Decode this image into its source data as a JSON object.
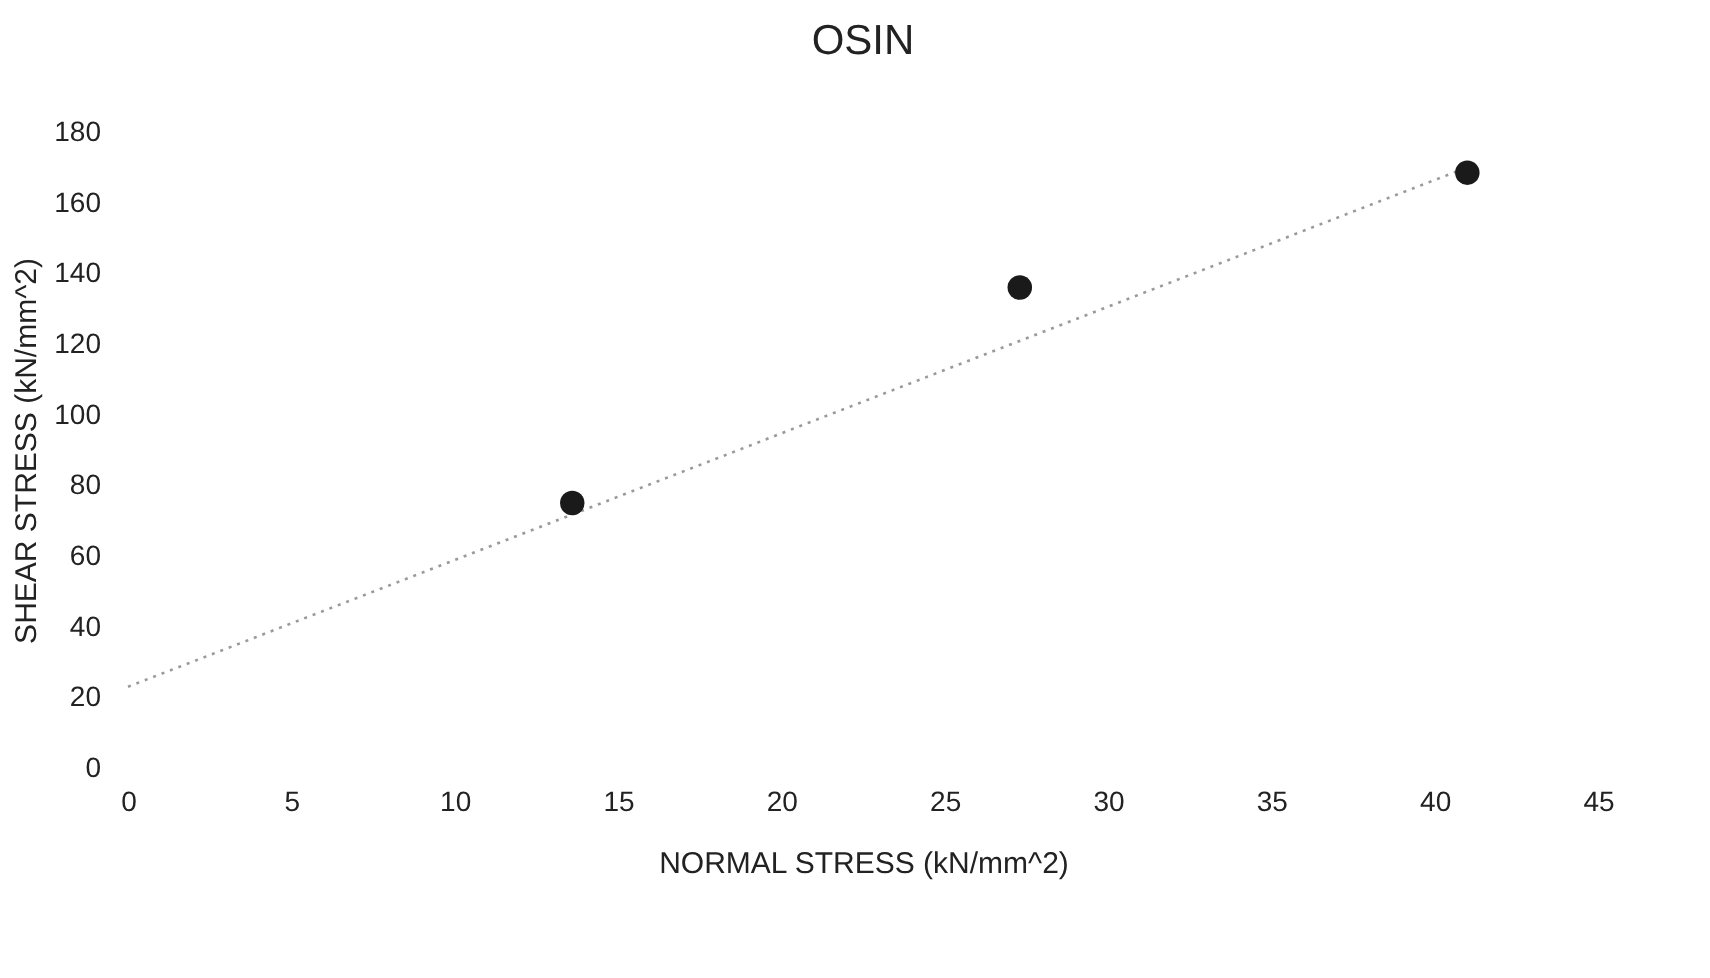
{
  "chart_data": {
    "type": "scatter",
    "title": "OSIN",
    "xlabel": "NORMAL STRESS (kN/mm^2)",
    "ylabel": "SHEAR STRESS (kN/mm^2)",
    "xlim": [
      0,
      45
    ],
    "xticks": [
      0,
      5,
      10,
      15,
      20,
      25,
      30,
      35,
      40,
      45
    ],
    "ylim": [
      0,
      180
    ],
    "yticks": [
      0,
      20,
      40,
      60,
      80,
      100,
      120,
      140,
      160,
      180
    ],
    "grid": false,
    "series": [
      {
        "marker": "circle",
        "color": "#1a1a1a",
        "x": [
          13.6,
          27.3,
          41.0
        ],
        "values": [
          75,
          136,
          168.5
        ]
      },
      {
        "type": "line",
        "color": "#9a9a9a",
        "line_style": "dotted",
        "marker": "none",
        "x": [
          0,
          41
        ],
        "values": [
          23,
          170
        ]
      }
    ]
  }
}
